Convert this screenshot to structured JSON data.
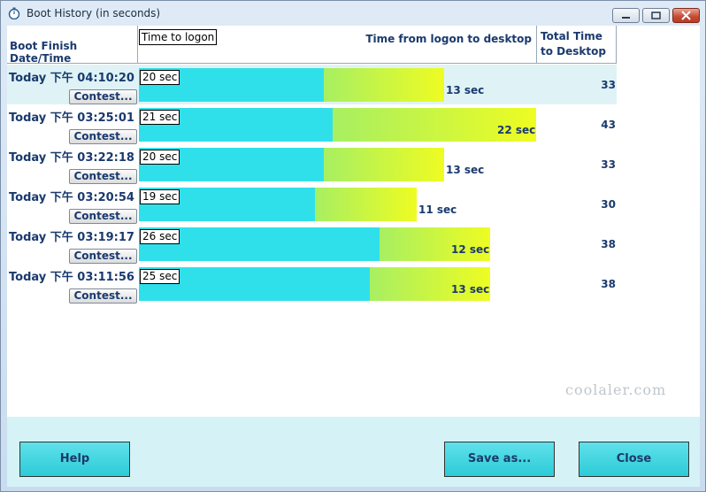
{
  "window": {
    "title": "Boot History (in seconds)"
  },
  "header": {
    "date_col": "Boot Finish Date/Time",
    "logon_col": "Time to logon",
    "desktop_col": "Time from logon to desktop",
    "total_col": "Total Time to Desktop"
  },
  "rows": [
    {
      "date": "Today  下午 04:10:20",
      "contest": "Contest...",
      "logon": "20 sec",
      "desktop": "13 sec",
      "total": "33",
      "logon_seconds": 20,
      "desktop_seconds": 13,
      "selected": true
    },
    {
      "date": "Today  下午 03:25:01",
      "contest": "Contest...",
      "logon": "21 sec",
      "desktop": "22 sec",
      "total": "43",
      "logon_seconds": 21,
      "desktop_seconds": 22,
      "selected": false
    },
    {
      "date": "Today  下午 03:22:18",
      "contest": "Contest...",
      "logon": "20 sec",
      "desktop": "13 sec",
      "total": "33",
      "logon_seconds": 20,
      "desktop_seconds": 13,
      "selected": false
    },
    {
      "date": "Today  下午 03:20:54",
      "contest": "Contest...",
      "logon": "19 sec",
      "desktop": "11 sec",
      "total": "30",
      "logon_seconds": 19,
      "desktop_seconds": 11,
      "selected": false
    },
    {
      "date": "Today  下午 03:19:17",
      "contest": "Contest...",
      "logon": "26 sec",
      "desktop": "12 sec",
      "total": "38",
      "logon_seconds": 26,
      "desktop_seconds": 12,
      "selected": false
    },
    {
      "date": "Today  下午 03:11:56",
      "contest": "Contest...",
      "logon": "25 sec",
      "desktop": "13 sec",
      "total": "38",
      "logon_seconds": 25,
      "desktop_seconds": 13,
      "selected": false
    }
  ],
  "buttons": {
    "help": "Help",
    "save": "Save as...",
    "close": "Close"
  },
  "watermark": "coolaler.com",
  "icons": {
    "title": "stopwatch-icon",
    "minimize": "minimize-icon",
    "maximize": "maximize-icon",
    "close": "close-icon"
  },
  "colors": {
    "logon_bar": "#2fe0ea",
    "desktop_bar_start": "#a7ef62",
    "desktop_bar_end": "#eefc22",
    "selected_row": "#dff3f6",
    "footer": "#d5f3f6"
  }
}
